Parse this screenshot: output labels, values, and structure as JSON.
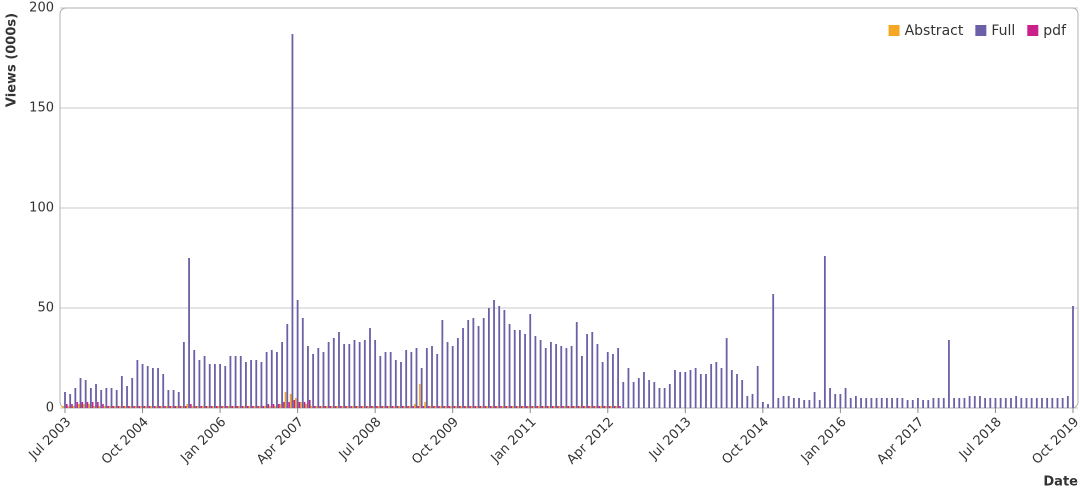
{
  "chart_data": {
    "type": "bar",
    "y_label": "Views (000s)",
    "x_label": "Date",
    "categories": [
      "Jul 2003",
      null,
      null,
      null,
      null,
      null,
      null,
      null,
      null,
      null,
      null,
      null,
      null,
      null,
      null,
      "Oct 2004",
      null,
      null,
      null,
      null,
      null,
      null,
      null,
      null,
      null,
      null,
      null,
      null,
      null,
      null,
      "Jan 2006",
      null,
      null,
      null,
      null,
      null,
      null,
      null,
      null,
      null,
      null,
      null,
      null,
      null,
      null,
      "Apr 2007",
      null,
      null,
      null,
      null,
      null,
      null,
      null,
      null,
      null,
      null,
      null,
      null,
      null,
      null,
      "Jul 2008",
      null,
      null,
      null,
      null,
      null,
      null,
      null,
      null,
      null,
      null,
      null,
      null,
      null,
      null,
      "Oct 2009",
      null,
      null,
      null,
      null,
      null,
      null,
      null,
      null,
      null,
      null,
      null,
      null,
      null,
      null,
      "Jan 2011",
      null,
      null,
      null,
      null,
      null,
      null,
      null,
      null,
      null,
      null,
      null,
      null,
      null,
      null,
      "Apr 2012",
      null,
      null,
      null,
      null,
      null,
      null,
      null,
      null,
      null,
      null,
      null,
      null,
      null,
      null,
      "Jul 2013",
      null,
      null,
      null,
      null,
      null,
      null,
      null,
      null,
      null,
      null,
      null,
      null,
      null,
      null,
      "Oct 2014",
      null,
      null,
      null,
      null,
      null,
      null,
      null,
      null,
      null,
      null,
      null,
      null,
      null,
      null,
      "Jan 2016",
      null,
      null,
      null,
      null,
      null,
      null,
      null,
      null,
      null,
      null,
      null,
      null,
      null,
      null,
      "Apr 2017",
      null,
      null,
      null,
      null,
      null,
      null,
      null,
      null,
      null,
      null,
      null,
      null,
      null,
      null,
      "Jul 2018",
      null,
      null,
      null,
      null,
      null,
      null,
      null,
      null,
      null,
      null,
      null,
      null,
      null,
      null,
      "Oct 2019"
    ],
    "series": [
      {
        "name": "Abstract",
        "color": "#f5a623",
        "values": [
          1,
          1,
          1,
          2,
          2,
          2,
          1,
          1,
          1,
          1,
          1,
          1,
          1,
          1,
          1,
          1,
          1,
          1,
          1,
          1,
          1,
          1,
          1,
          1,
          2,
          1,
          1,
          1,
          1,
          1,
          1,
          1,
          1,
          1,
          1,
          1,
          1,
          1,
          1,
          1,
          1,
          1,
          2,
          8,
          7,
          5,
          3,
          2,
          1,
          1,
          1,
          1,
          1,
          1,
          1,
          1,
          1,
          1,
          1,
          1,
          1,
          1,
          1,
          1,
          1,
          1,
          1,
          1,
          2,
          12,
          3,
          1,
          1,
          1,
          1,
          1,
          1,
          1,
          1,
          1,
          1,
          1,
          1,
          1,
          1,
          1,
          1,
          1,
          1,
          1,
          1,
          1,
          1,
          1,
          1,
          1,
          1,
          1,
          1,
          1,
          1,
          1,
          1,
          1,
          1,
          1,
          1,
          1,
          0,
          0,
          0,
          0,
          0,
          0,
          0,
          0,
          0,
          0,
          0,
          0,
          0,
          0,
          0,
          0,
          0,
          0,
          0,
          0,
          0,
          0,
          0,
          0,
          0,
          0,
          0,
          0,
          0,
          0,
          0,
          0,
          0,
          0,
          0,
          0,
          0,
          0,
          0,
          0,
          0,
          0,
          0,
          0,
          0,
          0,
          0,
          0,
          0,
          0,
          0,
          0,
          0,
          0,
          0,
          0,
          0,
          0,
          0,
          0,
          0,
          0,
          0,
          0,
          0,
          0,
          0,
          0,
          0,
          0,
          0,
          0,
          0,
          0,
          0,
          0,
          0,
          0,
          0,
          0,
          0,
          0,
          0,
          0,
          0,
          0,
          0,
          0
        ]
      },
      {
        "name": "Full",
        "color": "#6b5fa5",
        "values": [
          8,
          7,
          10,
          15,
          14,
          10,
          12,
          9,
          10,
          10,
          9,
          16,
          11,
          15,
          24,
          22,
          21,
          20,
          20,
          17,
          9,
          9,
          8,
          33,
          75,
          29,
          24,
          26,
          22,
          22,
          22,
          21,
          26,
          26,
          26,
          23,
          24,
          24,
          23,
          28,
          29,
          28,
          33,
          42,
          187,
          54,
          45,
          31,
          27,
          30,
          28,
          33,
          35,
          38,
          32,
          32,
          34,
          33,
          34,
          40,
          34,
          26,
          28,
          28,
          24,
          23,
          29,
          28,
          30,
          20,
          30,
          31,
          27,
          44,
          33,
          31,
          35,
          40,
          44,
          45,
          41,
          45,
          50,
          54,
          51,
          49,
          42,
          39,
          39,
          37,
          47,
          36,
          34,
          30,
          33,
          32,
          31,
          30,
          31,
          43,
          26,
          37,
          38,
          32,
          23,
          28,
          27,
          30,
          13,
          20,
          13,
          15,
          18,
          14,
          13,
          10,
          10,
          12,
          19,
          18,
          18,
          19,
          20,
          17,
          17,
          22,
          23,
          20,
          35,
          19,
          17,
          14,
          6,
          7,
          21,
          3,
          2,
          57,
          5,
          6,
          6,
          5,
          5,
          4,
          4,
          8,
          4,
          76,
          10,
          7,
          7,
          10,
          5,
          6,
          5,
          5,
          5,
          5,
          5,
          5,
          5,
          5,
          5,
          4,
          4,
          5,
          4,
          4,
          5,
          5,
          5,
          34,
          5,
          5,
          5,
          6,
          6,
          6,
          5,
          5,
          5,
          5,
          5,
          5,
          6,
          5,
          5,
          5,
          5,
          5,
          5,
          5,
          5,
          5,
          6,
          51
        ]
      },
      {
        "name": "pdf",
        "color": "#c9208a",
        "values": [
          2,
          2,
          3,
          3,
          3,
          3,
          3,
          2,
          1,
          1,
          1,
          1,
          1,
          1,
          1,
          1,
          1,
          1,
          1,
          1,
          1,
          1,
          1,
          1,
          2,
          1,
          1,
          1,
          1,
          1,
          1,
          1,
          1,
          1,
          1,
          1,
          1,
          1,
          1,
          2,
          2,
          2,
          3,
          3,
          4,
          3,
          3,
          4,
          1,
          1,
          1,
          1,
          1,
          1,
          1,
          1,
          1,
          1,
          1,
          1,
          1,
          1,
          1,
          1,
          1,
          1,
          1,
          1,
          1,
          1,
          1,
          1,
          1,
          1,
          1,
          1,
          1,
          1,
          1,
          1,
          1,
          1,
          1,
          1,
          1,
          1,
          1,
          1,
          1,
          1,
          1,
          1,
          1,
          1,
          1,
          1,
          1,
          1,
          1,
          1,
          1,
          1,
          1,
          1,
          1,
          1,
          1,
          1,
          0,
          0,
          0,
          0,
          0,
          0,
          0,
          0,
          0,
          0,
          0,
          0,
          0,
          0,
          0,
          0,
          0,
          0,
          0,
          0,
          0,
          0,
          0,
          0,
          0,
          0,
          0,
          0,
          0,
          0,
          0,
          0,
          0,
          0,
          0,
          0,
          0,
          0,
          0,
          0,
          0,
          0,
          0,
          0,
          0,
          0,
          0,
          0,
          0,
          0,
          0,
          0,
          0,
          0,
          0,
          0,
          0,
          0,
          0,
          0,
          0,
          0,
          0,
          0,
          0,
          0,
          0,
          0,
          0,
          0,
          0,
          0,
          0,
          0,
          0,
          0,
          0,
          0,
          0,
          0,
          0,
          0,
          0,
          0,
          0,
          0,
          0,
          0
        ]
      }
    ],
    "ylim": [
      0,
      200
    ],
    "yticks": [
      0,
      50,
      100,
      150,
      200
    ],
    "grid": true,
    "legend": "top-right"
  }
}
